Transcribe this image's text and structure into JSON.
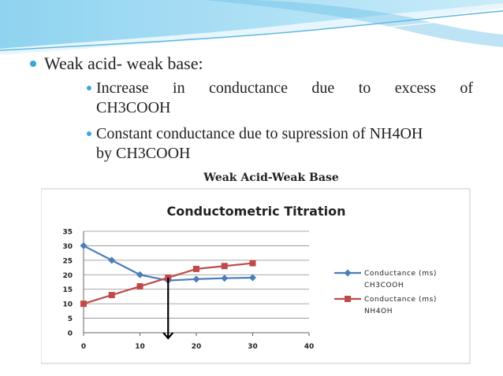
{
  "slide": {
    "bullet1": "Weak acid- weak base:",
    "sub1": {
      "line1_words": [
        "Increase",
        "in",
        "conductance",
        "due",
        "to",
        "excess",
        "of"
      ],
      "line2": "CH3COOH"
    },
    "sub2": {
      "line1": "Constant conductance due to supression of NH4OH",
      "line2": "by CH3COOH"
    }
  },
  "colors": {
    "accent": "#3aa7d9",
    "series1": "#4a7ebb",
    "series2": "#be4b48"
  },
  "chart_data": {
    "type": "line",
    "heading": "Weak Acid-Weak Base",
    "title": "Conductometric Titration",
    "xlim": [
      0,
      40
    ],
    "ylim": [
      0,
      35
    ],
    "xticks": [
      0,
      10,
      20,
      30,
      40
    ],
    "yticks": [
      0,
      5,
      10,
      15,
      20,
      25,
      30,
      35
    ],
    "grid": true,
    "legend_position": "right",
    "series": [
      {
        "name": "Conductance (ms) CH3COOH",
        "name_lines": [
          "Conductance (ms)",
          "CH3COOH"
        ],
        "marker": "diamond",
        "x": [
          0,
          5,
          10,
          15,
          20,
          25,
          30
        ],
        "y": [
          30,
          25,
          20,
          18,
          18.5,
          18.8,
          19
        ]
      },
      {
        "name": "Conductance (ms) NH4OH",
        "name_lines": [
          "Conductance (ms)",
          "NH4OH"
        ],
        "marker": "square",
        "x": [
          0,
          5,
          10,
          15,
          20,
          25,
          30
        ],
        "y": [
          10,
          13,
          16,
          19,
          22,
          23,
          24
        ]
      }
    ],
    "equivalence_arrow_x": 15
  }
}
